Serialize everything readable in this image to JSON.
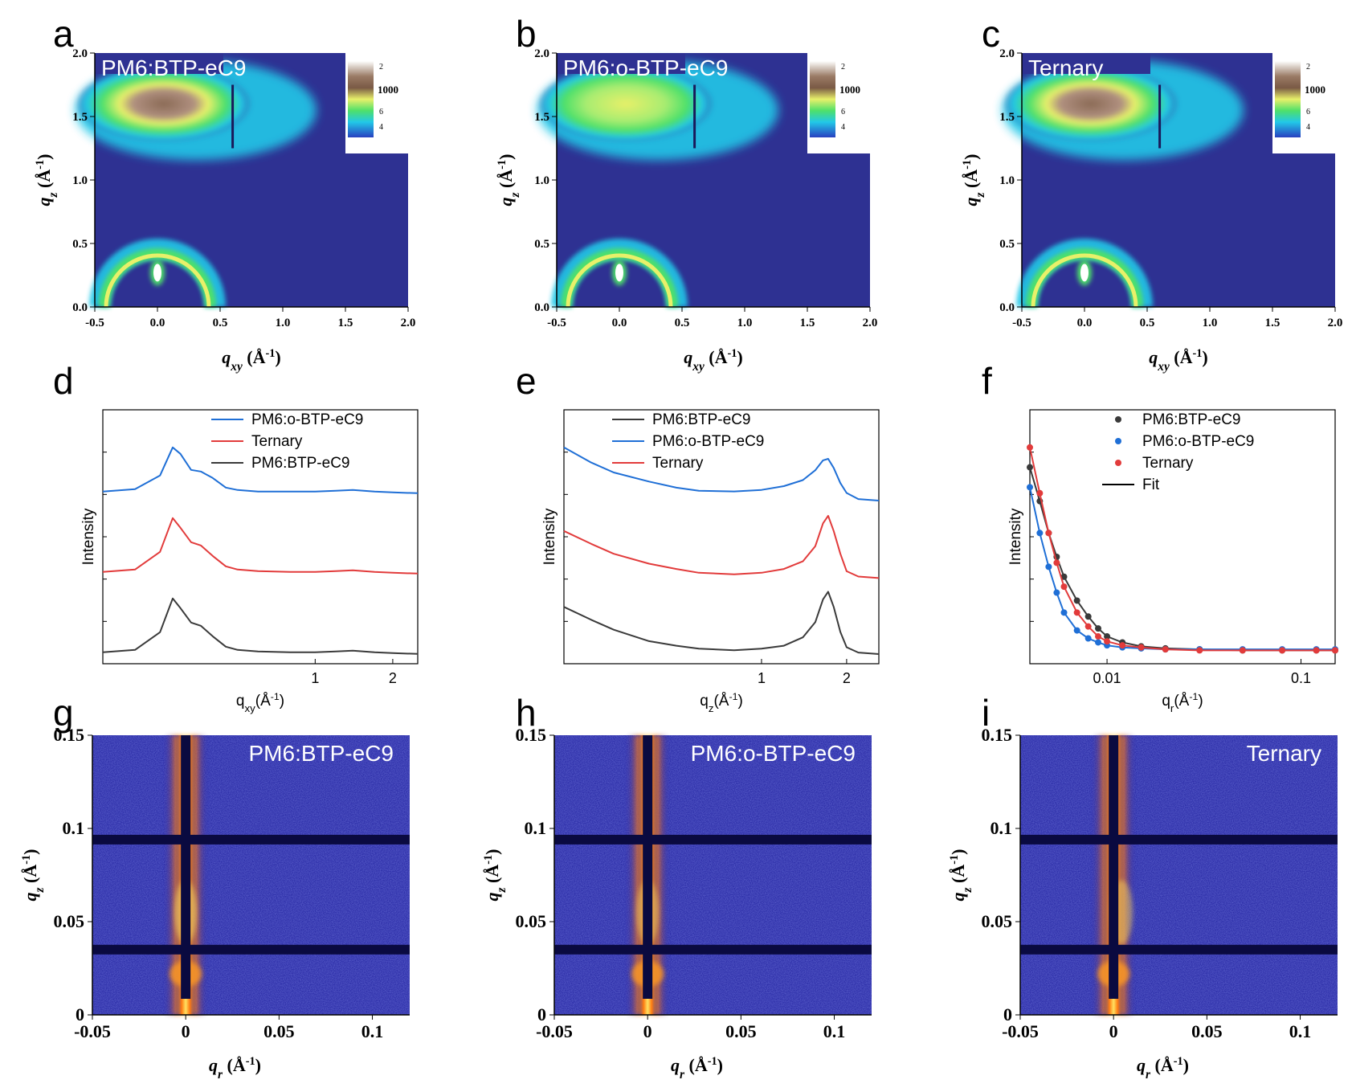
{
  "panel_letters": {
    "a": "a",
    "b": "b",
    "c": "c",
    "d": "d",
    "e": "e",
    "f": "f",
    "g": "g",
    "h": "h",
    "i": "i"
  },
  "gi_maps": {
    "x_ticks": [
      "-0.5",
      "0.0",
      "0.5",
      "1.0",
      "1.5",
      "2.0"
    ],
    "y_ticks": [
      "0.0",
      "0.5",
      "1.0",
      "1.5",
      "2.0"
    ],
    "x_label": "q",
    "x_label_sub": "xy",
    "y_label": "q",
    "y_label_sub": "z",
    "unit": "(Å",
    "unit_exp": "-1",
    "unit_close": ")",
    "colorbar_labels": [
      "2",
      "1000",
      "6",
      "4"
    ],
    "colors": {
      "background": "#2e3192",
      "green": "#4ee06a",
      "cyan": "#22c8e8",
      "yellow": "#e8f06a",
      "brown": "#8a6a55",
      "white": "#ffffff"
    },
    "panels": [
      {
        "label": "PM6:BTP-eC9"
      },
      {
        "label": "PM6:o-BTP-eC9"
      },
      {
        "label": "Ternary"
      }
    ]
  },
  "gisaxs_maps": {
    "x_ticks": [
      "-0.05",
      "0",
      "0.05",
      "0.1"
    ],
    "y_ticks": [
      "0",
      "0.05",
      "0.1",
      "0.15"
    ],
    "x_label": "q",
    "x_label_sub": "r",
    "y_label": "q",
    "y_label_sub": "z",
    "unit": "(Å",
    "unit_exp": "-1",
    "unit_close": ")",
    "colors": {
      "background": "#1a1a9a",
      "beam": "#ff9a20",
      "hot": "#ffe060",
      "stop": "#0a0a40"
    },
    "panels": [
      {
        "label": "PM6:BTP-eC9"
      },
      {
        "label": "PM6:o-BTP-eC9"
      },
      {
        "label": "Ternary"
      }
    ]
  },
  "colors": {
    "PM6:BTP-eC9": "#3a3a3a",
    "PM6:o-BTP-eC9": "#1f6fd6",
    "Ternary": "#e23b3b"
  },
  "chart_data": [
    {
      "id": "d",
      "type": "line",
      "xscale": "log",
      "xlim": [
        0.15,
        2.5
      ],
      "x_ticks": [
        "1",
        "2"
      ],
      "xlabel": "q",
      "xlabel_sub": "xy",
      "xlabel_unit": "(Å",
      "xlabel_exp": "-1",
      "xlabel_close": ")",
      "ylabel": "Intensity",
      "legend": [
        "PM6:o-BTP-eC9",
        "Ternary",
        "PM6:BTP-eC9"
      ],
      "legend_position": "top-right",
      "series": [
        {
          "name": "PM6:o-BTP-eC9",
          "x": [
            0.15,
            0.2,
            0.25,
            0.28,
            0.3,
            0.33,
            0.36,
            0.4,
            0.45,
            0.5,
            0.6,
            0.8,
            1.0,
            1.2,
            1.4,
            1.7,
            2.0,
            2.5
          ],
          "y": [
            2.05,
            2.08,
            2.25,
            2.6,
            2.52,
            2.32,
            2.3,
            2.22,
            2.1,
            2.07,
            2.05,
            2.05,
            2.05,
            2.06,
            2.07,
            2.05,
            2.04,
            2.03
          ]
        },
        {
          "name": "Ternary",
          "x": [
            0.15,
            0.2,
            0.25,
            0.28,
            0.3,
            0.33,
            0.36,
            0.4,
            0.45,
            0.5,
            0.6,
            0.8,
            1.0,
            1.2,
            1.4,
            1.7,
            2.0,
            2.5
          ],
          "y": [
            1.05,
            1.08,
            1.3,
            1.72,
            1.6,
            1.42,
            1.38,
            1.25,
            1.12,
            1.08,
            1.06,
            1.05,
            1.05,
            1.06,
            1.07,
            1.05,
            1.04,
            1.03
          ]
        },
        {
          "name": "PM6:BTP-eC9",
          "x": [
            0.15,
            0.2,
            0.25,
            0.28,
            0.3,
            0.33,
            0.36,
            0.4,
            0.45,
            0.5,
            0.6,
            0.8,
            1.0,
            1.2,
            1.4,
            1.7,
            2.0,
            2.5
          ],
          "y": [
            0.05,
            0.08,
            0.3,
            0.72,
            0.6,
            0.42,
            0.38,
            0.25,
            0.12,
            0.08,
            0.06,
            0.05,
            0.05,
            0.06,
            0.07,
            0.05,
            0.04,
            0.03
          ]
        }
      ]
    },
    {
      "id": "e",
      "type": "line",
      "xscale": "log",
      "xlim": [
        0.2,
        2.6
      ],
      "x_ticks": [
        "1",
        "2"
      ],
      "xlabel": "q",
      "xlabel_sub": "z",
      "xlabel_unit": "(Å",
      "xlabel_exp": "-1",
      "xlabel_close": ")",
      "ylabel": "Intensity",
      "legend": [
        "PM6:BTP-eC9",
        "PM6:o-BTP-eC9",
        "Ternary"
      ],
      "legend_position": "top-left",
      "series": [
        {
          "name": "PM6:o-BTP-eC9",
          "x": [
            0.2,
            0.25,
            0.3,
            0.4,
            0.5,
            0.6,
            0.8,
            1.0,
            1.2,
            1.4,
            1.55,
            1.65,
            1.72,
            1.8,
            1.9,
            2.0,
            2.2,
            2.6
          ],
          "y": [
            2.75,
            2.55,
            2.42,
            2.3,
            2.22,
            2.18,
            2.17,
            2.19,
            2.24,
            2.32,
            2.45,
            2.58,
            2.6,
            2.48,
            2.28,
            2.15,
            2.07,
            2.05
          ]
        },
        {
          "name": "Ternary",
          "x": [
            0.2,
            0.25,
            0.3,
            0.4,
            0.5,
            0.6,
            0.8,
            1.0,
            1.2,
            1.4,
            1.55,
            1.65,
            1.72,
            1.8,
            1.9,
            2.0,
            2.2,
            2.6
          ],
          "y": [
            1.65,
            1.48,
            1.35,
            1.22,
            1.15,
            1.1,
            1.08,
            1.1,
            1.15,
            1.25,
            1.45,
            1.75,
            1.85,
            1.65,
            1.35,
            1.12,
            1.05,
            1.03
          ]
        },
        {
          "name": "PM6:BTP-eC9",
          "x": [
            0.2,
            0.25,
            0.3,
            0.4,
            0.5,
            0.6,
            0.8,
            1.0,
            1.2,
            1.4,
            1.55,
            1.65,
            1.72,
            1.8,
            1.9,
            2.0,
            2.2,
            2.6
          ],
          "y": [
            0.65,
            0.48,
            0.35,
            0.2,
            0.14,
            0.1,
            0.08,
            0.1,
            0.14,
            0.25,
            0.45,
            0.75,
            0.85,
            0.65,
            0.32,
            0.12,
            0.05,
            0.03
          ]
        }
      ]
    },
    {
      "id": "f",
      "type": "scatter",
      "xscale": "log",
      "xlim": [
        0.004,
        0.15
      ],
      "x_ticks": [
        "0.01",
        "0.1"
      ],
      "xlabel": "q",
      "xlabel_sub": "r",
      "xlabel_unit": "(Å",
      "xlabel_exp": "-1",
      "xlabel_close": ")",
      "ylabel": "Intensity",
      "legend": [
        "PM6:BTP-eC9",
        "PM6:o-BTP-eC9",
        "Ternary",
        "Fit"
      ],
      "legend_position": "top-right",
      "series": [
        {
          "name": "PM6:BTP-eC9",
          "x": [
            0.004,
            0.0045,
            0.005,
            0.0055,
            0.006,
            0.007,
            0.008,
            0.009,
            0.01,
            0.012,
            0.015,
            0.02,
            0.03,
            0.05,
            0.08,
            0.12,
            0.15
          ],
          "y": [
            0.95,
            0.78,
            0.62,
            0.5,
            0.4,
            0.28,
            0.2,
            0.14,
            0.1,
            0.07,
            0.05,
            0.04,
            0.035,
            0.03,
            0.03,
            0.03,
            0.03
          ]
        },
        {
          "name": "PM6:o-BTP-eC9",
          "x": [
            0.004,
            0.0045,
            0.005,
            0.0055,
            0.006,
            0.007,
            0.008,
            0.009,
            0.01,
            0.012,
            0.015,
            0.02,
            0.03,
            0.05,
            0.08,
            0.12,
            0.15
          ],
          "y": [
            0.85,
            0.62,
            0.45,
            0.32,
            0.22,
            0.13,
            0.09,
            0.07,
            0.055,
            0.045,
            0.04,
            0.035,
            0.035,
            0.035,
            0.035,
            0.035,
            0.035
          ]
        },
        {
          "name": "Ternary",
          "x": [
            0.004,
            0.0045,
            0.005,
            0.0055,
            0.006,
            0.007,
            0.008,
            0.009,
            0.01,
            0.012,
            0.015,
            0.02,
            0.03,
            0.05,
            0.08,
            0.12,
            0.15
          ],
          "y": [
            1.05,
            0.82,
            0.62,
            0.47,
            0.35,
            0.22,
            0.15,
            0.1,
            0.075,
            0.055,
            0.045,
            0.035,
            0.03,
            0.03,
            0.03,
            0.03,
            0.03
          ]
        }
      ]
    }
  ]
}
